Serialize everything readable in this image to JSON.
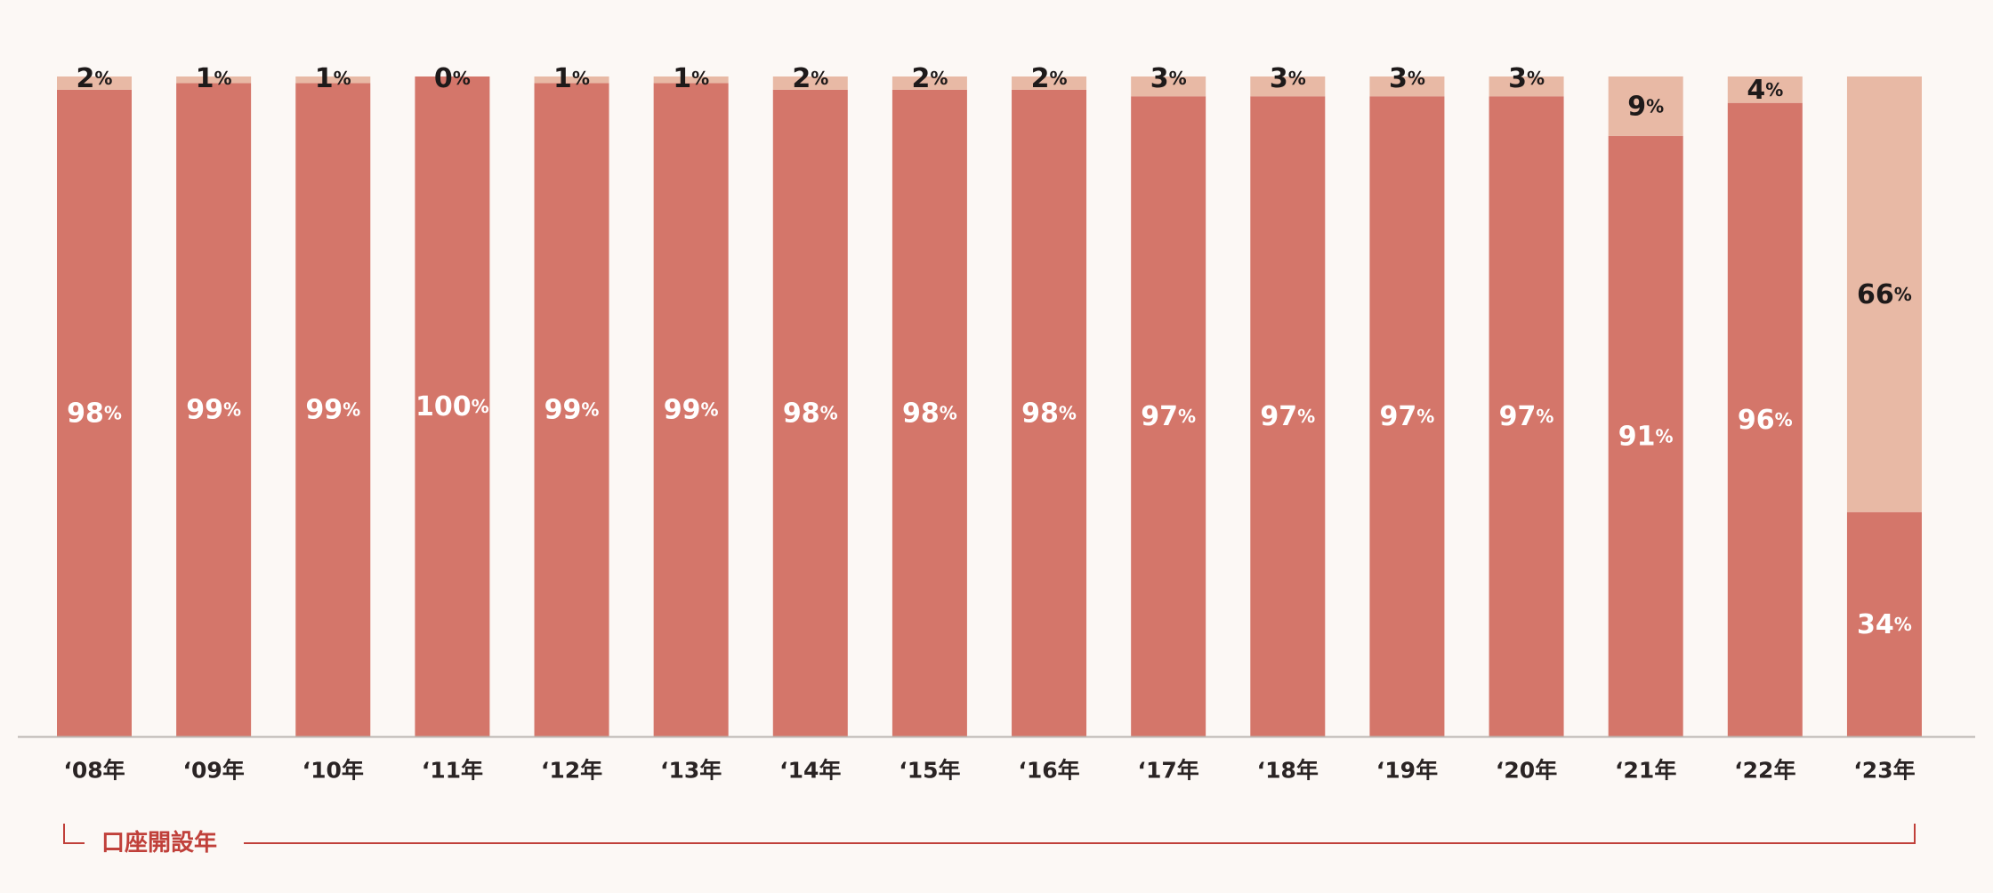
{
  "chart_data": {
    "type": "bar",
    "stacked": true,
    "normalized": true,
    "categories": [
      "‘08年",
      "‘09年",
      "‘10年",
      "‘11年",
      "‘12年",
      "‘13年",
      "‘14年",
      "‘15年",
      "‘16年",
      "‘17年",
      "‘18年",
      "‘19年",
      "‘20年",
      "‘21年",
      "‘22年",
      "‘23年"
    ],
    "series": [
      {
        "values": [
          98,
          99,
          99,
          100,
          99,
          99,
          98,
          98,
          98,
          97,
          97,
          97,
          97,
          91,
          96,
          34
        ]
      },
      {
        "values": [
          2,
          1,
          1,
          0,
          1,
          1,
          2,
          2,
          2,
          3,
          3,
          3,
          3,
          9,
          4,
          66
        ]
      }
    ],
    "value_suffix": "%",
    "ylim": [
      0,
      100
    ],
    "grid": false,
    "xlabel": "口座開設年"
  },
  "colors": {
    "background": "#fcf8f5",
    "series_primary": "#d4766a",
    "series_secondary": "#e8b9a5",
    "axis_line": "#bcb6b2",
    "xlabel_accent": "#c0403a",
    "label_dark": "#1e1a1a",
    "label_light": "#ffffff"
  }
}
